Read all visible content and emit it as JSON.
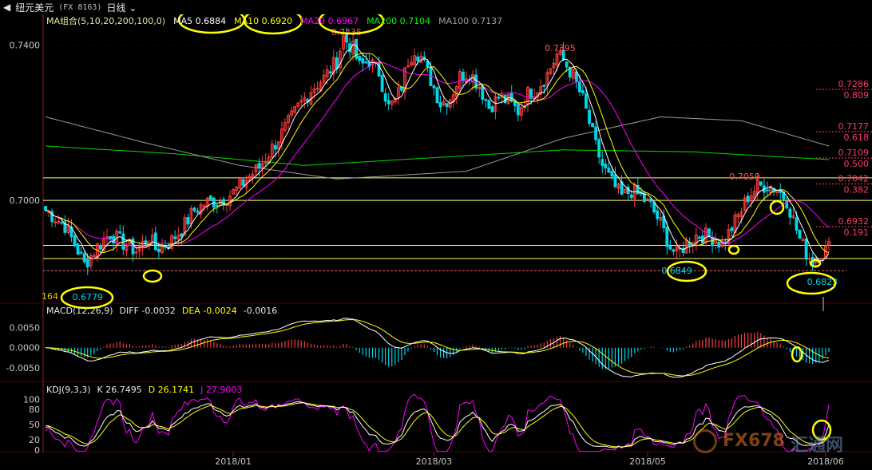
{
  "header": {
    "icon": "chevron-left-icon",
    "symbol_name": "纽元美元",
    "symbol_code": "(FX 8163)",
    "period": "日线"
  },
  "legends": {
    "ma": [
      {
        "label": "MA组合(5,10,20,200,100,0)",
        "color": "#e8e8a0"
      },
      {
        "label": "MA5 0.6884",
        "color": "#ffffff"
      },
      {
        "label": "MA10 0.6920",
        "color": "#ffff00"
      },
      {
        "label": "MA20 0.6967",
        "color": "#ff00ff"
      },
      {
        "label": "MA200 0.7104",
        "color": "#00ff00"
      },
      {
        "label": "MA100 0.7137",
        "color": "#a0a0a0"
      }
    ],
    "macd": [
      {
        "label": "MACD(12,26,9)",
        "color": "#e8e8e8"
      },
      {
        "label": "DIFF -0.0032",
        "color": "#e8e8e8"
      },
      {
        "label": "DEA -0.0024",
        "color": "#ffff00"
      },
      {
        "label": "-0.0016",
        "color": "#e8e8e8"
      }
    ],
    "kdj": [
      {
        "label": "KDJ(9,3,3)",
        "color": "#e8e8e8"
      },
      {
        "label": "K 26.7495",
        "color": "#e8e8e8"
      },
      {
        "label": "D 26.1741",
        "color": "#ffff00"
      },
      {
        "label": "J 27.9003",
        "color": "#ff00ff"
      }
    ]
  },
  "chart_data": {
    "type": "candlestick",
    "price_ylim": [
      0.6735,
      0.7475
    ],
    "price_ticks": [
      0.7,
      0.74
    ],
    "macd_ylim": [
      -0.008,
      0.0075
    ],
    "macd_ticks": [
      "0.0050",
      "0.0000",
      "-0.0050"
    ],
    "kdj_ylim": [
      -5,
      112
    ],
    "kdj_ticks": [
      "100",
      "80",
      "50",
      "20",
      "0"
    ],
    "x_ticks": [
      "2018/01",
      "2018/03",
      "2018/05",
      "2018/06"
    ],
    "annotations": [
      "0.7435",
      "0.7395",
      "0.7059",
      "0.6849",
      "0.6823",
      "164",
      "0.6779"
    ],
    "fib_levels": [
      {
        "price": 0.7286,
        "ratio": "0.809"
      },
      {
        "price": 0.7177,
        "ratio": "0.618"
      },
      {
        "price": 0.7109,
        "ratio": "0.500"
      },
      {
        "price": 0.7042,
        "ratio": "0.382"
      },
      {
        "price": 0.6932,
        "ratio": "0.191"
      }
    ],
    "horizontal_lines": [
      0.7058,
      0.7,
      0.6884,
      0.685,
      0.6819
    ],
    "colors": {
      "up": "#ff3b3b",
      "down": "#00d6e8",
      "ma5": "#ffffff",
      "ma10": "#ffff00",
      "ma20": "#ff00ff",
      "ma200": "#00dd00",
      "ma100": "#9a9a9a",
      "fib": "#ff3b6a",
      "highlight": "#ffff00"
    },
    "price_control": [
      [
        0,
        0.6975
      ],
      [
        6,
        0.6935
      ],
      [
        10,
        0.687
      ],
      [
        12,
        0.6835
      ],
      [
        16,
        0.688
      ],
      [
        20,
        0.6915
      ],
      [
        24,
        0.689
      ],
      [
        28,
        0.687
      ],
      [
        32,
        0.6905
      ],
      [
        34,
        0.6875
      ],
      [
        38,
        0.689
      ],
      [
        42,
        0.6925
      ],
      [
        46,
        0.6975
      ],
      [
        50,
        0.6995
      ],
      [
        54,
        0.7
      ],
      [
        58,
        0.702
      ],
      [
        62,
        0.7055
      ],
      [
        66,
        0.7085
      ],
      [
        70,
        0.7135
      ],
      [
        74,
        0.7185
      ],
      [
        78,
        0.724
      ],
      [
        82,
        0.7285
      ],
      [
        86,
        0.7315
      ],
      [
        90,
        0.736
      ],
      [
        92,
        0.742
      ],
      [
        95,
        0.739
      ],
      [
        97,
        0.7345
      ],
      [
        100,
        0.736
      ],
      [
        103,
        0.733
      ],
      [
        106,
        0.724
      ],
      [
        108,
        0.7255
      ],
      [
        110,
        0.7295
      ],
      [
        112,
        0.736
      ],
      [
        114,
        0.739
      ],
      [
        116,
        0.737
      ],
      [
        118,
        0.733
      ],
      [
        120,
        0.729
      ],
      [
        122,
        0.725
      ],
      [
        125,
        0.7265
      ],
      [
        128,
        0.732
      ],
      [
        131,
        0.733
      ],
      [
        134,
        0.7295
      ],
      [
        137,
        0.724
      ],
      [
        140,
        0.7265
      ],
      [
        143,
        0.7255
      ],
      [
        146,
        0.723
      ],
      [
        149,
        0.7275
      ],
      [
        152,
        0.729
      ],
      [
        155,
        0.7325
      ],
      [
        158,
        0.7375
      ],
      [
        160,
        0.736
      ],
      [
        163,
        0.732
      ],
      [
        166,
        0.726
      ],
      [
        168,
        0.72
      ],
      [
        170,
        0.714
      ],
      [
        172,
        0.709
      ],
      [
        175,
        0.7045
      ],
      [
        178,
        0.701
      ],
      [
        181,
        0.7025
      ],
      [
        184,
        0.701
      ],
      [
        187,
        0.6985
      ],
      [
        190,
        0.694
      ],
      [
        193,
        0.688
      ],
      [
        195,
        0.686
      ],
      [
        198,
        0.689
      ],
      [
        201,
        0.691
      ],
      [
        204,
        0.691
      ],
      [
        207,
        0.69
      ],
      [
        209,
        0.6885
      ],
      [
        212,
        0.693
      ],
      [
        215,
        0.6975
      ],
      [
        217,
        0.701
      ],
      [
        220,
        0.7035
      ],
      [
        223,
        0.704
      ],
      [
        226,
        0.703
      ],
      [
        229,
        0.7
      ],
      [
        231,
        0.695
      ],
      [
        233,
        0.69
      ],
      [
        235,
        0.6865
      ],
      [
        237,
        0.6845
      ],
      [
        239,
        0.686
      ],
      [
        242,
        0.688
      ]
    ]
  }
}
